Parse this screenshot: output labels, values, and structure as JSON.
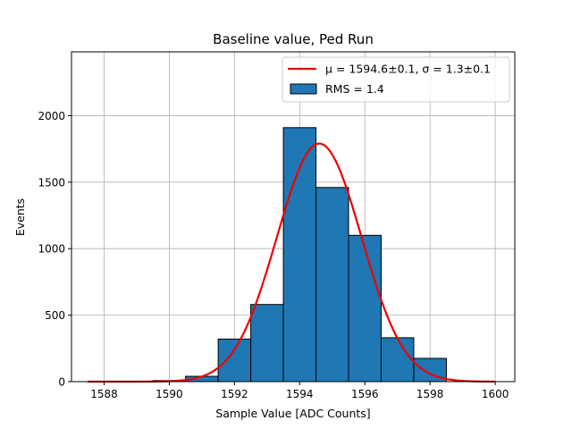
{
  "chart_data": {
    "type": "bar",
    "title": "Baseline value, Ped Run",
    "xlabel": "Sample Value [ADC Counts]",
    "ylabel": "Events",
    "xlim": [
      1587.0,
      1600.6
    ],
    "ylim": [
      0,
      2480
    ],
    "x_ticks": [
      1588,
      1590,
      1592,
      1594,
      1596,
      1598,
      1600
    ],
    "y_ticks": [
      0,
      500,
      1000,
      1500,
      2000
    ],
    "grid": true,
    "legend_position": "top-right",
    "bins": [
      {
        "x0": 1589.5,
        "x1": 1590.5,
        "value": 8
      },
      {
        "x0": 1590.5,
        "x1": 1591.5,
        "value": 40
      },
      {
        "x0": 1591.5,
        "x1": 1592.5,
        "value": 320
      },
      {
        "x0": 1592.5,
        "x1": 1593.5,
        "value": 580
      },
      {
        "x0": 1593.5,
        "x1": 1594.5,
        "value": 1910
      },
      {
        "x0": 1594.5,
        "x1": 1595.5,
        "value": 1460
      },
      {
        "x0": 1595.5,
        "x1": 1596.5,
        "value": 1100
      },
      {
        "x0": 1596.5,
        "x1": 1597.5,
        "value": 330
      },
      {
        "x0": 1597.5,
        "x1": 1598.5,
        "value": 175
      }
    ],
    "fit": {
      "name": "Gaussian fit",
      "mu": 1594.6,
      "sigma": 1.3,
      "amplitude": 1790,
      "x_range": [
        1587.5,
        1600
      ]
    },
    "legend": {
      "fit_label": "μ = 1594.6±0.1, σ = 1.3±0.1",
      "hist_label": "RMS = 1.4"
    },
    "colors": {
      "bar": "#1f77b4",
      "bar_edge": "#000000",
      "fit": "#ee0000",
      "grid": "#b0b0b0"
    }
  }
}
